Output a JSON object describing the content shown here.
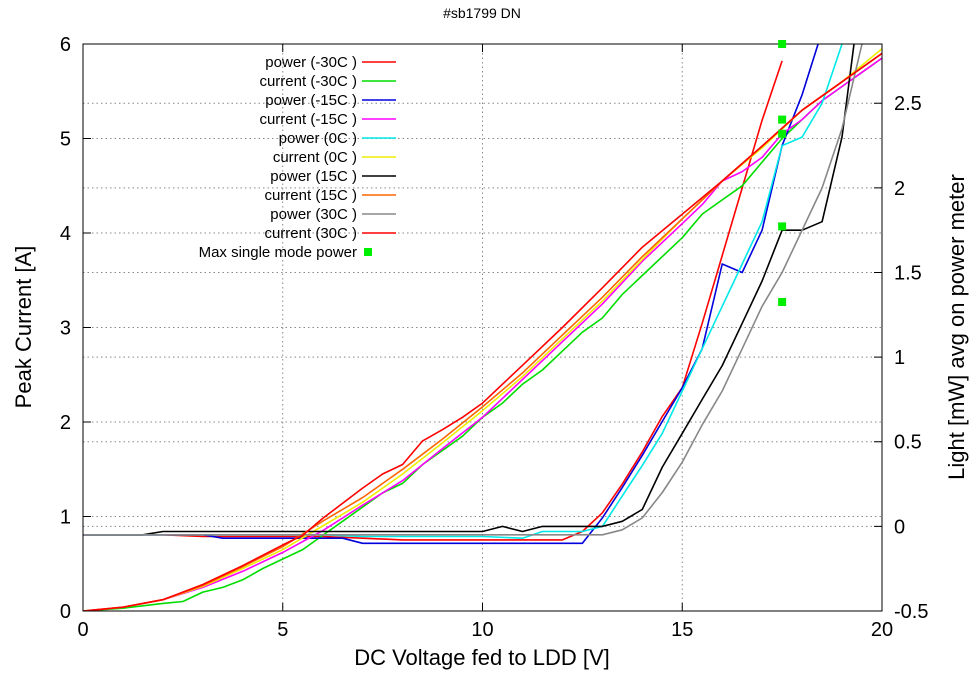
{
  "chart_data": {
    "type": "line",
    "title": "#sb1799 DN",
    "xlabel": "DC Voltage fed to LDD [V]",
    "ylabel": "Peak Current [A]",
    "y2label": "Light [mW] avg on power meter",
    "xlim": [
      0,
      20
    ],
    "ylim": [
      0,
      6
    ],
    "y2lim": [
      -0.5,
      2.85
    ],
    "xticks": [
      "0",
      "5",
      "10",
      "15",
      "20"
    ],
    "yticks": [
      "0",
      "1",
      "2",
      "3",
      "4",
      "5",
      "6"
    ],
    "y2ticks": [
      "-0.5",
      "0",
      "0.5",
      "1",
      "1.5",
      "2",
      "2.5"
    ],
    "grid": true,
    "legend_position": "top-left",
    "series": [
      {
        "name": "power (-30C )",
        "axis": "y2",
        "color": "#ff0000",
        "x": [
          0,
          1,
          2,
          3,
          4,
          5,
          6,
          7,
          8,
          9,
          10,
          11,
          12,
          12.5,
          13,
          13.5,
          14,
          14.5,
          15,
          15.5,
          16,
          16.5,
          17,
          17.5
        ],
        "y": [
          -0.05,
          -0.05,
          -0.05,
          -0.06,
          -0.06,
          -0.06,
          -0.06,
          -0.07,
          -0.08,
          -0.08,
          -0.08,
          -0.08,
          -0.08,
          -0.03,
          0.08,
          0.25,
          0.44,
          0.65,
          0.82,
          1.2,
          1.6,
          2.0,
          2.4,
          2.75
        ]
      },
      {
        "name": "current (-30C )",
        "axis": "y",
        "color": "#00dd00",
        "x": [
          0,
          1,
          2,
          2.5,
          3,
          3.5,
          4,
          4.5,
          5,
          5.5,
          6,
          6.5,
          7,
          7.5,
          8,
          8.5,
          9,
          9.5,
          10,
          10.5,
          11,
          11.5,
          12,
          12.5,
          13,
          13.5,
          14,
          14.5,
          15,
          15.5,
          16,
          16.5,
          17,
          17.5,
          18,
          18.5,
          19,
          19.5,
          20
        ],
        "y": [
          0,
          0.03,
          0.08,
          0.1,
          0.2,
          0.25,
          0.33,
          0.45,
          0.55,
          0.65,
          0.8,
          0.95,
          1.1,
          1.25,
          1.35,
          1.55,
          1.7,
          1.85,
          2.05,
          2.2,
          2.4,
          2.55,
          2.75,
          2.95,
          3.1,
          3.35,
          3.55,
          3.75,
          3.95,
          4.2,
          4.35,
          4.5,
          4.75,
          5.0,
          5.2,
          5.4,
          5.55,
          5.7,
          5.85
        ]
      },
      {
        "name": "power (-15C )",
        "axis": "y2",
        "color": "#0000dd",
        "x": [
          0,
          1,
          2,
          3,
          3.5,
          4,
          5,
          6,
          6.5,
          7,
          8,
          9,
          10,
          11,
          12,
          12.5,
          13,
          13.5,
          14,
          14.5,
          15,
          15.5,
          16,
          16.5,
          17,
          17.5,
          18,
          18.4
        ],
        "y": [
          -0.05,
          -0.05,
          -0.05,
          -0.05,
          -0.07,
          -0.07,
          -0.07,
          -0.07,
          -0.07,
          -0.1,
          -0.1,
          -0.1,
          -0.1,
          -0.1,
          -0.1,
          -0.1,
          0.05,
          0.23,
          0.42,
          0.62,
          0.82,
          1.05,
          1.55,
          1.5,
          1.75,
          2.25,
          2.55,
          2.85
        ]
      },
      {
        "name": "current (-15C )",
        "axis": "y",
        "color": "#ff00ff",
        "x": [
          0,
          1,
          2,
          3,
          4,
          5,
          6,
          7,
          8,
          9,
          10,
          11,
          12,
          13,
          14,
          15,
          15.5,
          16,
          16.5,
          17,
          17.5,
          18,
          18.5,
          19,
          19.5,
          20
        ],
        "y": [
          0,
          0.04,
          0.12,
          0.25,
          0.42,
          0.62,
          0.85,
          1.12,
          1.38,
          1.72,
          2.05,
          2.45,
          2.85,
          3.25,
          3.7,
          4.1,
          4.3,
          4.55,
          4.65,
          4.8,
          5.05,
          5.2,
          5.4,
          5.55,
          5.7,
          5.85
        ]
      },
      {
        "name": "power (0C )",
        "axis": "y2",
        "color": "#00e8e8",
        "x": [
          0,
          1,
          2,
          3,
          4,
          5,
          6,
          7,
          8,
          9,
          10,
          11,
          11.5,
          12,
          12.5,
          13,
          13.5,
          14,
          14.5,
          15,
          15.5,
          16,
          16.5,
          17,
          17.5,
          18,
          18.5,
          19
        ],
        "y": [
          -0.05,
          -0.05,
          -0.05,
          -0.05,
          -0.05,
          -0.05,
          -0.05,
          -0.06,
          -0.06,
          -0.06,
          -0.06,
          -0.07,
          -0.03,
          -0.03,
          -0.03,
          0.0,
          0.18,
          0.36,
          0.55,
          0.8,
          1.05,
          1.3,
          1.55,
          1.8,
          2.25,
          2.3,
          2.5,
          2.85
        ]
      },
      {
        "name": "current (0C )",
        "axis": "y",
        "color": "#eeee00",
        "x": [
          0,
          1,
          2,
          3,
          4,
          5,
          6,
          7,
          8,
          9,
          10,
          11,
          12,
          13,
          14,
          15,
          16,
          17,
          18,
          19,
          20
        ],
        "y": [
          0,
          0.04,
          0.12,
          0.26,
          0.45,
          0.65,
          0.9,
          1.15,
          1.45,
          1.78,
          2.12,
          2.48,
          2.88,
          3.28,
          3.72,
          4.15,
          4.55,
          4.9,
          5.3,
          5.6,
          5.95
        ]
      },
      {
        "name": "power (15C )",
        "axis": "y2",
        "color": "#000000",
        "x": [
          0,
          1,
          1.5,
          2,
          3,
          4,
          5,
          6,
          7,
          8,
          9,
          10,
          10.5,
          11,
          11.5,
          12,
          12.5,
          13,
          13.5,
          14,
          14.5,
          15,
          15.5,
          16,
          16.5,
          17,
          17.5,
          18,
          18.5,
          19,
          19.3
        ],
        "y": [
          -0.05,
          -0.05,
          -0.05,
          -0.03,
          -0.03,
          -0.03,
          -0.03,
          -0.03,
          -0.03,
          -0.03,
          -0.03,
          -0.03,
          0.0,
          -0.03,
          0.0,
          0.0,
          0.0,
          0.0,
          0.03,
          0.1,
          0.35,
          0.55,
          0.75,
          0.95,
          1.2,
          1.45,
          1.75,
          1.75,
          1.8,
          2.3,
          2.85
        ]
      },
      {
        "name": "current (15C )",
        "axis": "y",
        "color": "#ff6600",
        "x": [
          0,
          1,
          2,
          3,
          4,
          5,
          6,
          7,
          8,
          9,
          10,
          11,
          12,
          13,
          14,
          15,
          16,
          17,
          18,
          19,
          20
        ],
        "y": [
          0,
          0.04,
          0.12,
          0.27,
          0.47,
          0.68,
          0.95,
          1.2,
          1.5,
          1.82,
          2.16,
          2.52,
          2.92,
          3.32,
          3.75,
          4.15,
          4.55,
          4.92,
          5.3,
          5.6,
          5.9
        ]
      },
      {
        "name": "power (30C )",
        "axis": "y2",
        "color": "#888888",
        "x": [
          0,
          1,
          2,
          3,
          4,
          5,
          6,
          7,
          8,
          9,
          10,
          11,
          12,
          12.5,
          13,
          13.5,
          14,
          14.5,
          15,
          15.5,
          16,
          16.5,
          17,
          17.5,
          18,
          18.5,
          19,
          19.5
        ],
        "y": [
          -0.05,
          -0.05,
          -0.05,
          -0.05,
          -0.05,
          -0.05,
          -0.05,
          -0.05,
          -0.05,
          -0.05,
          -0.05,
          -0.05,
          -0.05,
          -0.05,
          -0.05,
          -0.02,
          0.05,
          0.2,
          0.38,
          0.6,
          0.8,
          1.05,
          1.3,
          1.5,
          1.75,
          2.0,
          2.35,
          2.85
        ]
      },
      {
        "name": "current (30C )",
        "axis": "y",
        "color": "#ff0000",
        "x": [
          0,
          1,
          2,
          3,
          4,
          5,
          5.5,
          6,
          7,
          7.5,
          8,
          8.5,
          9,
          9.5,
          10,
          11,
          12,
          13,
          14,
          15,
          16,
          17,
          18,
          19,
          20
        ],
        "y": [
          0,
          0.04,
          0.12,
          0.28,
          0.48,
          0.7,
          0.8,
          0.98,
          1.3,
          1.45,
          1.55,
          1.8,
          1.92,
          2.05,
          2.2,
          2.6,
          3.0,
          3.42,
          3.85,
          4.2,
          4.55,
          4.92,
          5.3,
          5.6,
          5.9
        ]
      },
      {
        "name": "Max single mode power",
        "axis": "y",
        "color": "#00ee00",
        "style": "points",
        "x": [
          17.5,
          17.5,
          17.5,
          17.5,
          17.5
        ],
        "y": [
          6.0,
          5.2,
          5.05,
          4.07,
          3.27
        ]
      }
    ]
  }
}
